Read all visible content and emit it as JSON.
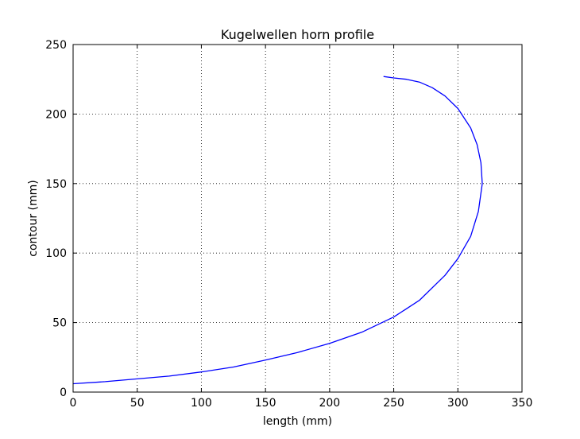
{
  "chart_data": {
    "type": "line",
    "title": "Kugelwellen horn profile",
    "xlabel": "length (mm)",
    "ylabel": "contour (mm)",
    "xlim": [
      0,
      350
    ],
    "ylim": [
      0,
      250
    ],
    "xticks": [
      0,
      50,
      100,
      150,
      200,
      250,
      300,
      350
    ],
    "yticks": [
      0,
      50,
      100,
      150,
      200,
      250
    ],
    "xtick_labels": [
      "0",
      "50",
      "100",
      "150",
      "200",
      "250",
      "300",
      "350"
    ],
    "ytick_labels": [
      "0",
      "50",
      "100",
      "150",
      "200",
      "250"
    ],
    "grid": true,
    "series": [
      {
        "color": "#0000ff",
        "x": [
          0,
          25,
          50,
          75,
          100,
          125,
          150,
          175,
          200,
          225,
          250,
          270,
          290,
          300,
          310,
          316,
          319,
          318,
          315,
          310,
          300,
          290,
          280,
          270,
          260,
          250,
          242
        ],
        "y": [
          6,
          7.5,
          9.5,
          11.5,
          14.5,
          18,
          23,
          28.5,
          35,
          43,
          54,
          66,
          84,
          96,
          112,
          130,
          150,
          165,
          178,
          190,
          204,
          213,
          219,
          223,
          225,
          226,
          227
        ]
      }
    ]
  }
}
